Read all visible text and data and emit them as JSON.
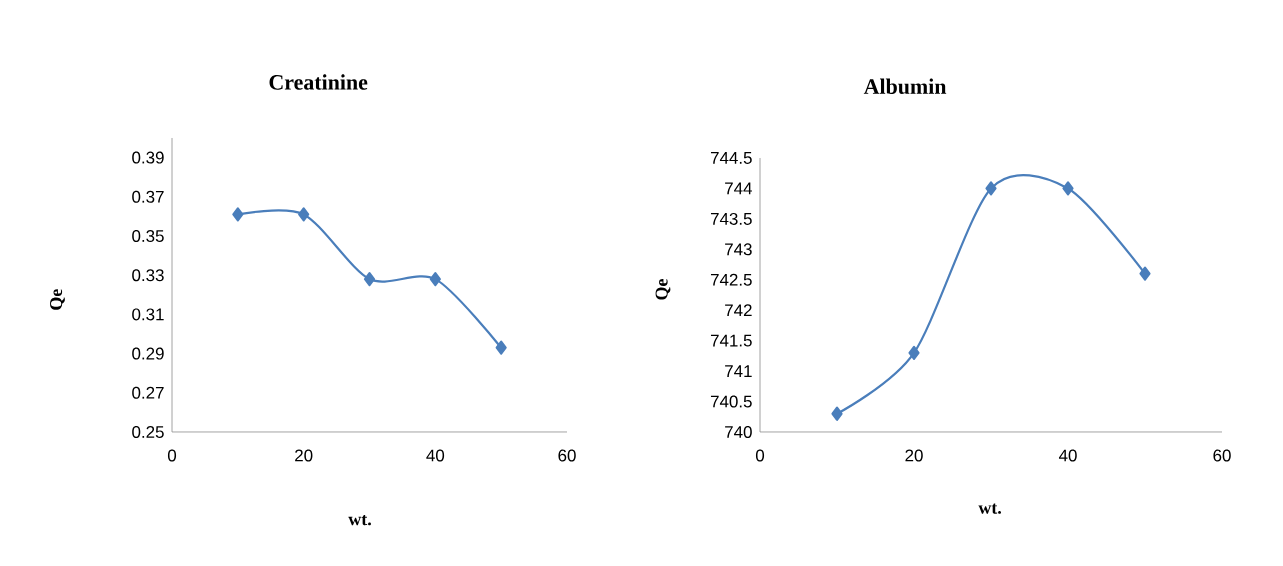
{
  "chart_data": [
    {
      "type": "line",
      "title": "Creatinine",
      "xlabel": "wt.",
      "ylabel": "Qe",
      "x": [
        10,
        20,
        30,
        40,
        50
      ],
      "values": [
        0.361,
        0.361,
        0.328,
        0.328,
        0.293
      ],
      "color": "#4a7ebb",
      "marker": "diamond",
      "xlim": [
        0,
        60
      ],
      "xticks": [
        0,
        20,
        40,
        60
      ],
      "ylim": [
        0.25,
        0.4
      ],
      "yticks": [
        0.25,
        0.27,
        0.29,
        0.31,
        0.33,
        0.35,
        0.37,
        0.39
      ]
    },
    {
      "type": "line",
      "title": "Albumin",
      "xlabel": "wt.",
      "ylabel": "Qe",
      "x": [
        10,
        20,
        30,
        40,
        50
      ],
      "values": [
        740.3,
        741.3,
        744.0,
        744.0,
        742.6
      ],
      "color": "#4a7ebb",
      "marker": "diamond",
      "xlim": [
        0,
        60
      ],
      "xticks": [
        0,
        20,
        40,
        60
      ],
      "ylim": [
        740,
        744.5
      ],
      "yticks": [
        740,
        740.5,
        741,
        741.5,
        742,
        742.5,
        743,
        743.5,
        744,
        744.5
      ]
    }
  ]
}
